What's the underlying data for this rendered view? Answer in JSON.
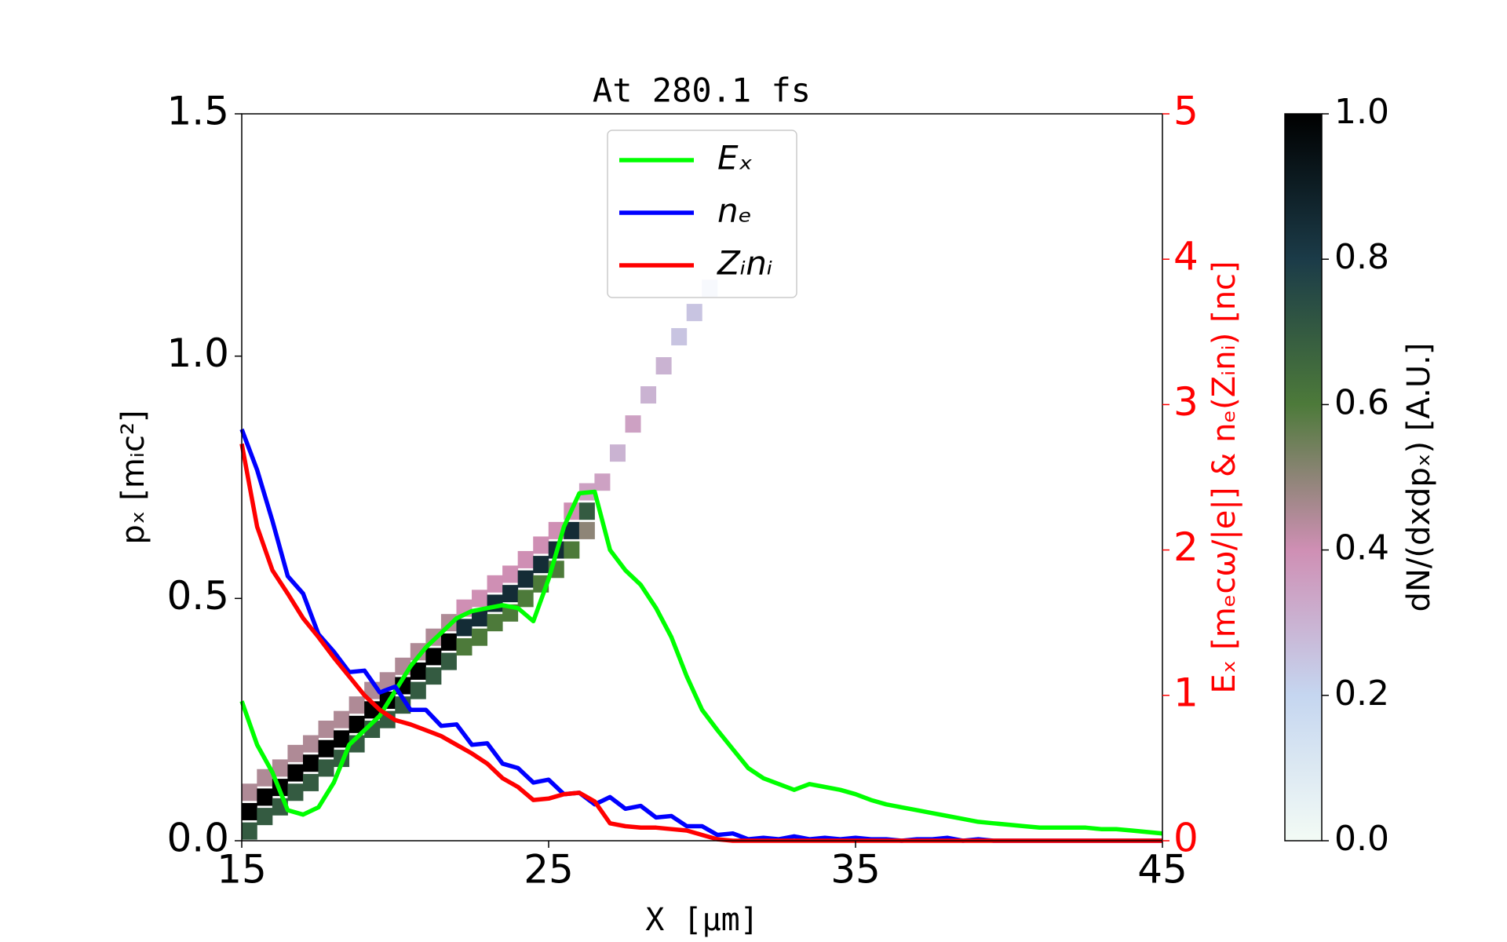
{
  "chart_data": {
    "type": "phase-space",
    "title": "At 280.1 fs",
    "x_label": "X [μm]",
    "y_label": "pₓ [mᵢc²]",
    "y2_label": "Eₓ [mₑcω/|e|] & nₑ(Zᵢnᵢ) [nc]",
    "colorbar_label": "dN/(dxdpₓ) [A.U.]",
    "xlim": [
      15,
      45
    ],
    "xticks": [
      15,
      25,
      35,
      45
    ],
    "ylim": [
      0,
      1.5
    ],
    "yticks": [
      {
        "value": 0,
        "label": "0.0"
      },
      {
        "value": 0.5,
        "label": "0.5"
      },
      {
        "value": 1.0,
        "label": "1.0"
      },
      {
        "value": 1.5,
        "label": "1.5"
      }
    ],
    "y2lim": [
      0,
      5
    ],
    "y2ticks": [
      0,
      1,
      2,
      3,
      4,
      5
    ],
    "y2_color": "#ff0000",
    "zlim": [
      0,
      1
    ],
    "zticks": [
      {
        "value": 0,
        "label": "0.0"
      },
      {
        "value": 0.2,
        "label": "0.2"
      },
      {
        "value": 0.4,
        "label": "0.4"
      },
      {
        "value": 0.6,
        "label": "0.6"
      },
      {
        "value": 0.8,
        "label": "0.8"
      },
      {
        "value": 1.0,
        "label": "1.0"
      }
    ],
    "colormap": [
      "#f3fbf5",
      "#c5d6f0",
      "#cf8fb4",
      "#4d7a3a",
      "#1b3b48",
      "#000000"
    ],
    "legend": "upper center",
    "heatmap": {
      "x": [
        15.25,
        15.25,
        15.25,
        15.75,
        15.75,
        15.75,
        16.25,
        16.25,
        16.25,
        16.75,
        16.75,
        16.75,
        17.25,
        17.25,
        17.25,
        17.75,
        17.75,
        17.75,
        18.25,
        18.25,
        18.25,
        18.75,
        18.75,
        18.75,
        19.25,
        19.25,
        19.25,
        19.75,
        19.75,
        19.75,
        20.25,
        20.25,
        20.25,
        20.75,
        20.75,
        20.75,
        21.25,
        21.25,
        21.25,
        21.75,
        21.75,
        21.75,
        22.25,
        22.25,
        22.25,
        22.75,
        22.75,
        22.75,
        23.25,
        23.25,
        23.25,
        23.75,
        23.75,
        23.75,
        24.25,
        24.25,
        24.25,
        24.75,
        24.75,
        24.75,
        25.25,
        25.25,
        25.25,
        25.75,
        25.75,
        25.75,
        26.25,
        26.25,
        26.25,
        26.75,
        27.25,
        27.75,
        28.25,
        28.75,
        29.25,
        29.75,
        30.25
      ],
      "y": [
        0.02,
        0.06,
        0.1,
        0.05,
        0.09,
        0.13,
        0.07,
        0.11,
        0.15,
        0.1,
        0.14,
        0.18,
        0.12,
        0.16,
        0.2,
        0.15,
        0.19,
        0.23,
        0.17,
        0.21,
        0.25,
        0.2,
        0.24,
        0.28,
        0.23,
        0.27,
        0.31,
        0.25,
        0.29,
        0.33,
        0.28,
        0.32,
        0.36,
        0.31,
        0.35,
        0.39,
        0.34,
        0.38,
        0.42,
        0.37,
        0.41,
        0.45,
        0.4,
        0.44,
        0.48,
        0.42,
        0.46,
        0.5,
        0.45,
        0.49,
        0.53,
        0.47,
        0.51,
        0.55,
        0.5,
        0.54,
        0.58,
        0.53,
        0.57,
        0.61,
        0.56,
        0.6,
        0.64,
        0.6,
        0.64,
        0.68,
        0.64,
        0.68,
        0.72,
        0.74,
        0.8,
        0.86,
        0.92,
        0.98,
        1.04,
        1.09,
        1.14
      ],
      "z": [
        0.7,
        1,
        0.45,
        0.7,
        1,
        0.45,
        0.7,
        1,
        0.45,
        0.7,
        1,
        0.45,
        0.7,
        1,
        0.45,
        0.7,
        1,
        0.45,
        0.7,
        1,
        0.45,
        0.7,
        1,
        0.45,
        0.7,
        1,
        0.45,
        0.7,
        1,
        0.45,
        0.7,
        1,
        0.45,
        0.7,
        1,
        0.45,
        0.7,
        1,
        0.45,
        0.7,
        1,
        0.45,
        0.6,
        0.85,
        0.4,
        0.6,
        0.85,
        0.4,
        0.6,
        0.85,
        0.4,
        0.6,
        0.85,
        0.4,
        0.6,
        0.85,
        0.4,
        0.6,
        0.85,
        0.4,
        0.6,
        0.85,
        0.4,
        0.6,
        0.85,
        0.4,
        0.5,
        0.7,
        0.35,
        0.35,
        0.3,
        0.35,
        0.3,
        0.3,
        0.25,
        0.25,
        0.2
      ]
    },
    "x": [
      15,
      15.5,
      16,
      16.5,
      17,
      17.5,
      18,
      18.5,
      19,
      19.5,
      20,
      20.5,
      21,
      21.5,
      22,
      22.5,
      23,
      23.5,
      24,
      24.5,
      25,
      25.5,
      26,
      26.5,
      27,
      27.5,
      28,
      28.5,
      29,
      29.5,
      30,
      30.5,
      31,
      31.5,
      32,
      32.5,
      33,
      33.5,
      34,
      34.5,
      35,
      35.5,
      36,
      36.5,
      37,
      37.5,
      38,
      38.5,
      39,
      39.5,
      40,
      40.5,
      41,
      41.5,
      42,
      42.5,
      43,
      43.5,
      44,
      44.5,
      45
    ],
    "series": [
      {
        "name": "Eₓ",
        "color": "#00ff00",
        "axis": "y2",
        "values": [
          0.96,
          0.66,
          0.47,
          0.21,
          0.18,
          0.23,
          0.4,
          0.66,
          0.76,
          0.86,
          1.03,
          1.2,
          1.33,
          1.43,
          1.53,
          1.58,
          1.6,
          1.62,
          1.6,
          1.51,
          1.8,
          2.16,
          2.39,
          2.4,
          2.0,
          1.86,
          1.76,
          1.6,
          1.4,
          1.13,
          0.9,
          0.76,
          0.63,
          0.5,
          0.43,
          0.39,
          0.35,
          0.39,
          0.37,
          0.35,
          0.32,
          0.28,
          0.25,
          0.23,
          0.21,
          0.19,
          0.17,
          0.15,
          0.13,
          0.12,
          0.11,
          0.1,
          0.09,
          0.09,
          0.09,
          0.09,
          0.08,
          0.08,
          0.07,
          0.06,
          0.05
        ]
      },
      {
        "name": "nₑ",
        "color": "#0000ff",
        "axis": "y2",
        "values": [
          2.83,
          2.55,
          2.2,
          1.82,
          1.7,
          1.42,
          1.3,
          1.16,
          1.17,
          1.02,
          1.06,
          0.9,
          0.9,
          0.79,
          0.8,
          0.66,
          0.67,
          0.53,
          0.5,
          0.4,
          0.42,
          0.32,
          0.33,
          0.25,
          0.3,
          0.22,
          0.24,
          0.16,
          0.17,
          0.1,
          0.1,
          0.04,
          0.05,
          0.01,
          0.02,
          0.01,
          0.03,
          0.01,
          0.02,
          0.01,
          0.02,
          0.01,
          0.01,
          0,
          0.01,
          0.01,
          0.02,
          0,
          0.01,
          0,
          0,
          0,
          0,
          0,
          0,
          0,
          0,
          0,
          0,
          0,
          0
        ]
      },
      {
        "name": "Zᵢnᵢ",
        "color": "#ff0000",
        "axis": "y2",
        "values": [
          2.73,
          2.16,
          1.86,
          1.7,
          1.53,
          1.4,
          1.26,
          1.13,
          1.0,
          0.9,
          0.83,
          0.8,
          0.76,
          0.72,
          0.66,
          0.6,
          0.53,
          0.43,
          0.37,
          0.28,
          0.29,
          0.32,
          0.33,
          0.27,
          0.12,
          0.1,
          0.09,
          0.09,
          0.08,
          0.07,
          0.04,
          0.01,
          0,
          0,
          0,
          0,
          0,
          0,
          0,
          0,
          0,
          0,
          0,
          0,
          0,
          0,
          0,
          0,
          0,
          0,
          0,
          0,
          0,
          0,
          0,
          0,
          0,
          0,
          0,
          0,
          0
        ]
      }
    ]
  }
}
